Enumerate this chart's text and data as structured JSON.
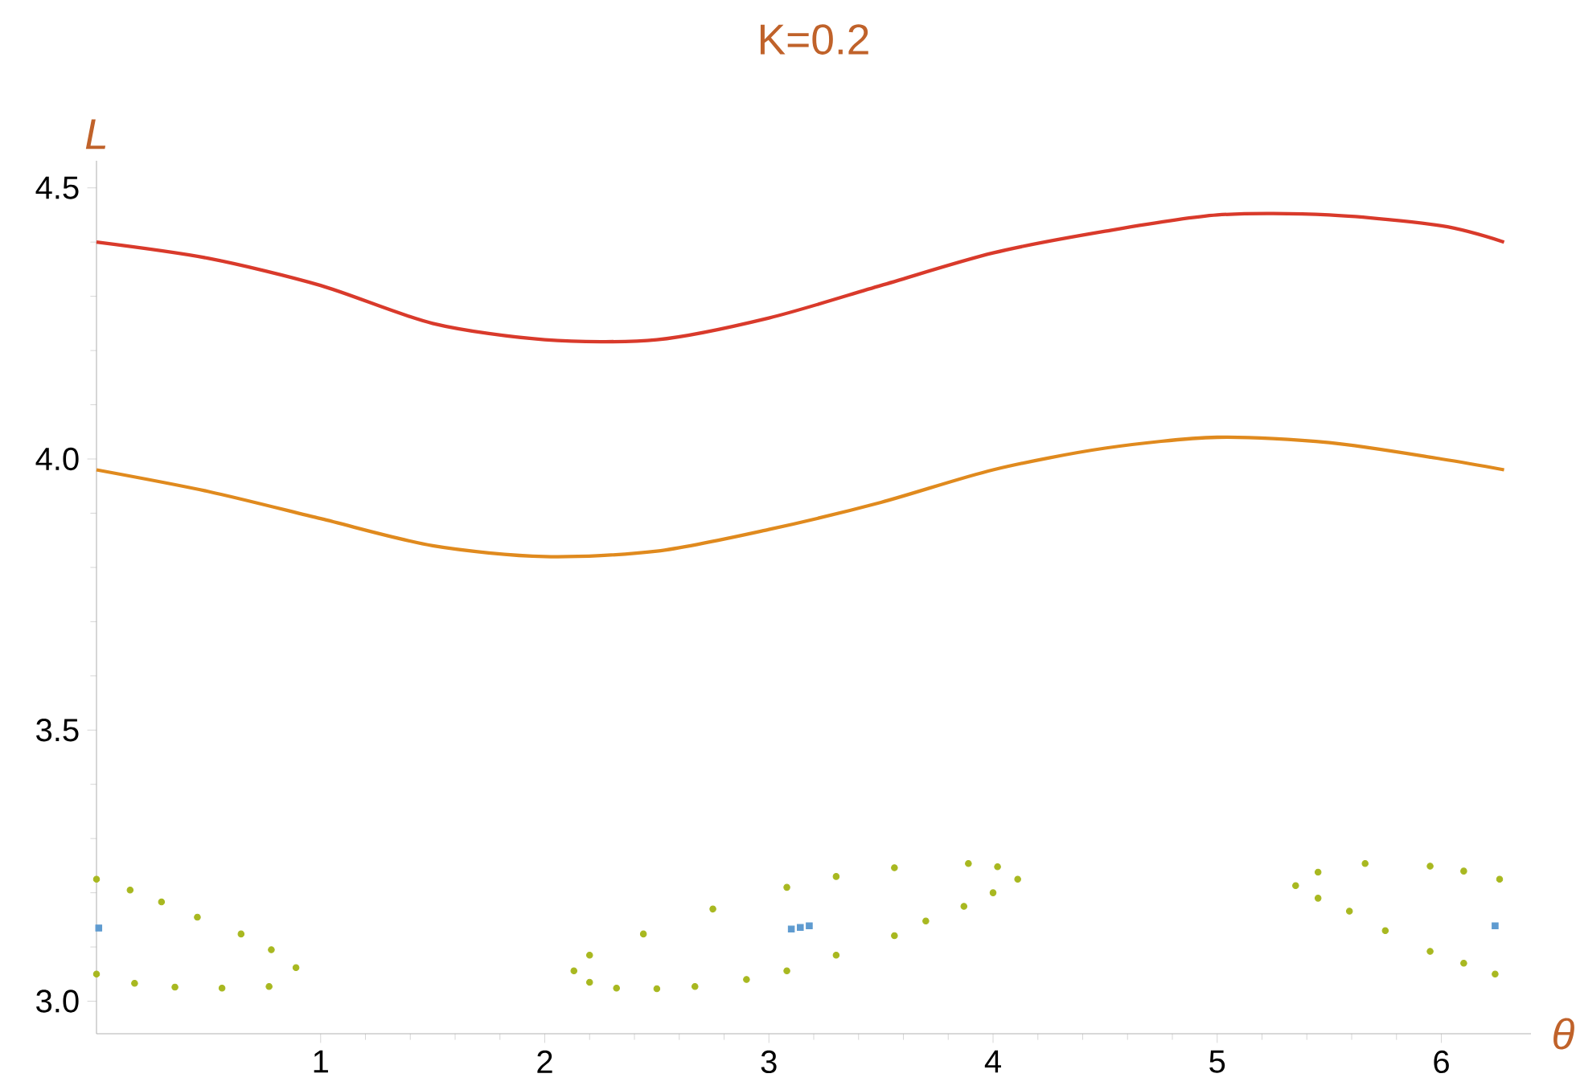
{
  "chart_data": {
    "type": "line",
    "title": "K=0.2",
    "xlabel": "θ",
    "ylabel": "L",
    "xlim": [
      0,
      6.4
    ],
    "ylim": [
      2.94,
      4.55
    ],
    "xticks": [
      1,
      2,
      3,
      4,
      5,
      6
    ],
    "yticks": [
      {
        "value": 3.0,
        "label": "3.0"
      },
      {
        "value": 3.5,
        "label": "3.5"
      },
      {
        "value": 4.0,
        "label": "4.0"
      },
      {
        "value": 4.5,
        "label": "4.5"
      }
    ],
    "series": [
      {
        "color": "#d93a2b",
        "x": [
          0,
          0.5,
          1,
          1.5,
          2,
          2.5,
          3,
          3.5,
          4,
          4.5,
          5,
          5.5,
          6,
          6.28
        ],
        "values": [
          4.4,
          4.37,
          4.32,
          4.25,
          4.22,
          4.22,
          4.26,
          4.32,
          4.38,
          4.42,
          4.45,
          4.45,
          4.43,
          4.4
        ]
      },
      {
        "color": "#e08a1e",
        "x": [
          0,
          0.5,
          1,
          1.5,
          2,
          2.5,
          3,
          3.5,
          4,
          4.5,
          5,
          5.5,
          6,
          6.28
        ],
        "values": [
          3.98,
          3.94,
          3.89,
          3.84,
          3.82,
          3.83,
          3.87,
          3.92,
          3.98,
          4.02,
          4.04,
          4.03,
          4.0,
          3.98
        ]
      },
      {
        "type": "scatter",
        "marker": "circle",
        "color": "#a8b820",
        "x": [
          0,
          0.15,
          0.29,
          0.45,
          0.645,
          0.78,
          0.89,
          0.77,
          0.56,
          0.35,
          0.17,
          0,
          2.13,
          2.2,
          2.44,
          2.75,
          3.08,
          3.3,
          3.56,
          3.89,
          4.02,
          4.11,
          4.0,
          3.87,
          3.7,
          3.56,
          3.3,
          3.08,
          2.9,
          2.67,
          2.5,
          2.32,
          2.2,
          5.35,
          5.45,
          5.66,
          5.95,
          6.1,
          6.26,
          5.45,
          5.59,
          5.75,
          5.95,
          6.1,
          6.24
        ],
        "values": [
          3.225,
          3.205,
          3.183,
          3.155,
          3.124,
          3.095,
          3.062,
          3.027,
          3.024,
          3.026,
          3.033,
          3.05,
          3.056,
          3.085,
          3.124,
          3.17,
          3.21,
          3.23,
          3.246,
          3.254,
          3.248,
          3.225,
          3.2,
          3.175,
          3.148,
          3.121,
          3.085,
          3.056,
          3.04,
          3.027,
          3.023,
          3.024,
          3.035,
          3.213,
          3.238,
          3.254,
          3.249,
          3.24,
          3.225,
          3.19,
          3.166,
          3.13,
          3.092,
          3.07,
          3.05
        ]
      },
      {
        "type": "scatter",
        "marker": "square",
        "color": "#5f9bd0",
        "x": [
          0.01,
          3.1,
          3.14,
          3.18,
          6.24
        ],
        "values": [
          3.135,
          3.133,
          3.136,
          3.139,
          3.139
        ]
      }
    ]
  }
}
